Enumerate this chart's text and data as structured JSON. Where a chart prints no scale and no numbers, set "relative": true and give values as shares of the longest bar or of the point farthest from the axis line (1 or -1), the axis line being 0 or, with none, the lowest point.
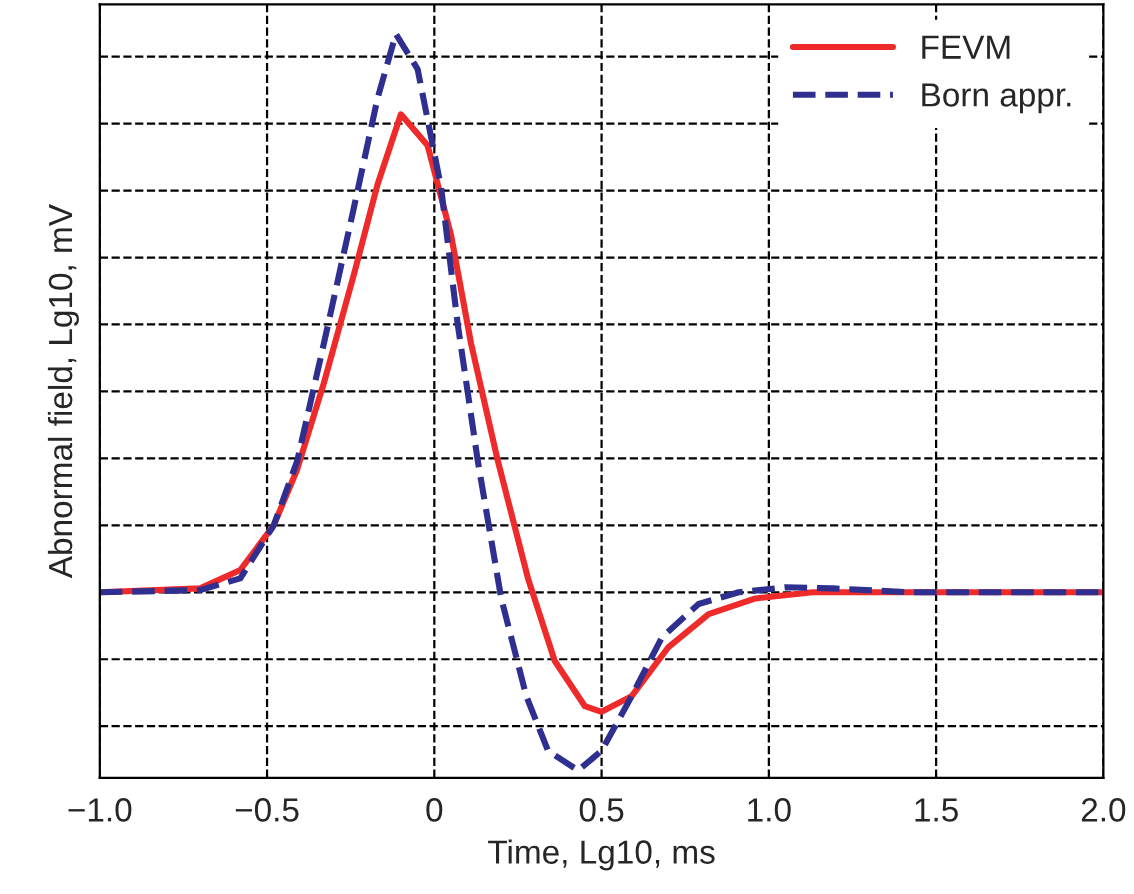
{
  "chart_data": {
    "type": "line",
    "relative": true,
    "xlabel": "Time, Lg10, ms",
    "ylabel": "Abnormal field, Lg10, mV",
    "xlim": [
      -1.0,
      2.0
    ],
    "xticks": [
      {
        "value": -1.0,
        "label": "−1.0"
      },
      {
        "value": -0.5,
        "label": "−0.5"
      },
      0,
      0.5,
      {
        "value": 1.0,
        "label": "1.0"
      },
      1.5,
      {
        "value": 2.0,
        "label": "2.0"
      }
    ],
    "grid": true,
    "legend": "top right",
    "marker": "none",
    "series": [
      {
        "name": "FEVM",
        "color": "#ee2a2a",
        "line_style": "solid",
        "x": [
          -1.0,
          -0.7,
          -0.58,
          -0.48,
          -0.41,
          -0.33,
          -0.24,
          -0.17,
          -0.1,
          -0.02,
          0.05,
          0.11,
          0.19,
          0.28,
          0.36,
          0.45,
          0.5,
          0.59,
          0.7,
          0.82,
          0.96,
          1.13,
          2.0
        ],
        "values": [
          0,
          0.007,
          0.04,
          0.12,
          0.22,
          0.375,
          0.57,
          0.73,
          0.856,
          0.8,
          0.64,
          0.445,
          0.235,
          0.025,
          -0.123,
          -0.204,
          -0.214,
          -0.186,
          -0.098,
          -0.039,
          -0.011,
          0,
          0
        ]
      },
      {
        "name": "Born appr.",
        "color": "#2e2f8f",
        "line_style": "dashed",
        "x": [
          -1.0,
          -0.7,
          -0.58,
          -0.48,
          -0.41,
          -0.33,
          -0.24,
          -0.17,
          -0.115,
          -0.05,
          0.02,
          0.07,
          0.13,
          0.2,
          0.275,
          0.34,
          0.43,
          0.5,
          0.59,
          0.68,
          0.79,
          0.91,
          1.05,
          1.19,
          1.42,
          2.0
        ],
        "values": [
          0,
          0.004,
          0.025,
          0.12,
          0.235,
          0.446,
          0.69,
          0.884,
          1.0,
          0.937,
          0.726,
          0.48,
          0.235,
          -0.011,
          -0.186,
          -0.284,
          -0.319,
          -0.284,
          -0.186,
          -0.081,
          -0.021,
          0,
          0.009,
          0.007,
          0,
          0
        ]
      }
    ]
  }
}
